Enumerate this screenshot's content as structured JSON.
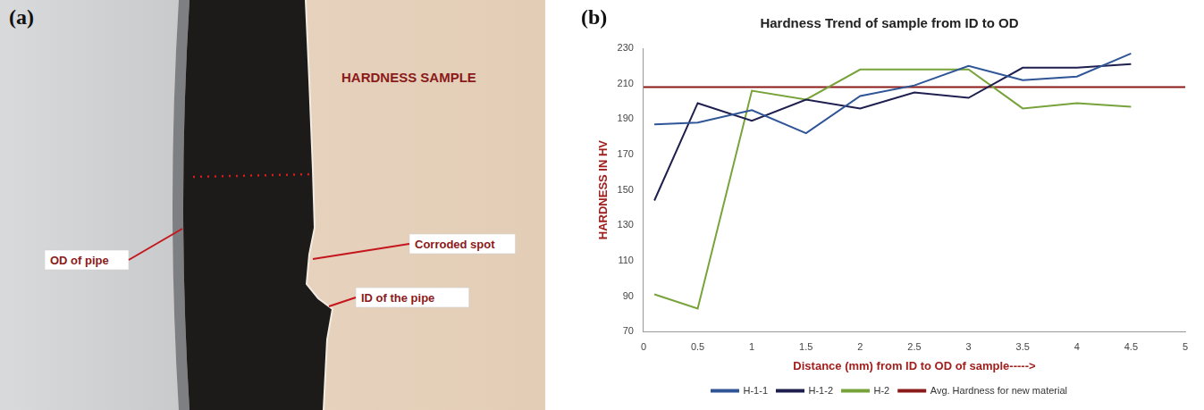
{
  "panel_letters": [
    "(a)",
    "(b)"
  ],
  "photo_labels": {
    "sample": "HARDNESS SAMPLE",
    "od": "OD of pipe",
    "corroded": "Corroded spot",
    "id": "ID of the pipe"
  },
  "chart_data": {
    "type": "line",
    "title": "Hardness Trend of sample from ID to OD",
    "x_label": "Distance (mm) from ID to OD of sample----->",
    "y_label": "HARDNESS IN HV",
    "x": [
      0.1,
      0.5,
      1,
      1.5,
      2,
      2.5,
      3,
      3.5,
      4,
      4.5
    ],
    "series": [
      {
        "name": "H-1-1",
        "color": "#2f5597",
        "line_style": "solid",
        "values": [
          187,
          188,
          195,
          182,
          203,
          209,
          220,
          212,
          214,
          227
        ]
      },
      {
        "name": "H-1-2",
        "color": "#1f1f4f",
        "line_style": "solid",
        "values": [
          144,
          199,
          189,
          201,
          196,
          205,
          202,
          219,
          219,
          221
        ]
      },
      {
        "name": "H-2",
        "color": "#77a33a",
        "line_style": "solid",
        "values": [
          91,
          83,
          206,
          201,
          218,
          218,
          218,
          196,
          199,
          197
        ]
      },
      {
        "name": "Avg. Hardness for new material",
        "color": "#8b1a1a",
        "line_style": "solid",
        "x": [
          0,
          5
        ],
        "values": [
          208,
          208
        ]
      }
    ],
    "xlim": [
      0,
      5
    ],
    "xticks": [
      0,
      0.5,
      1,
      1.5,
      2,
      2.5,
      3,
      3.5,
      4,
      4.5,
      5
    ],
    "ylim": [
      70,
      230
    ],
    "yticks": [
      70,
      90,
      110,
      130,
      150,
      170,
      190,
      210,
      230
    ],
    "grid": false,
    "legend": "bottom"
  }
}
